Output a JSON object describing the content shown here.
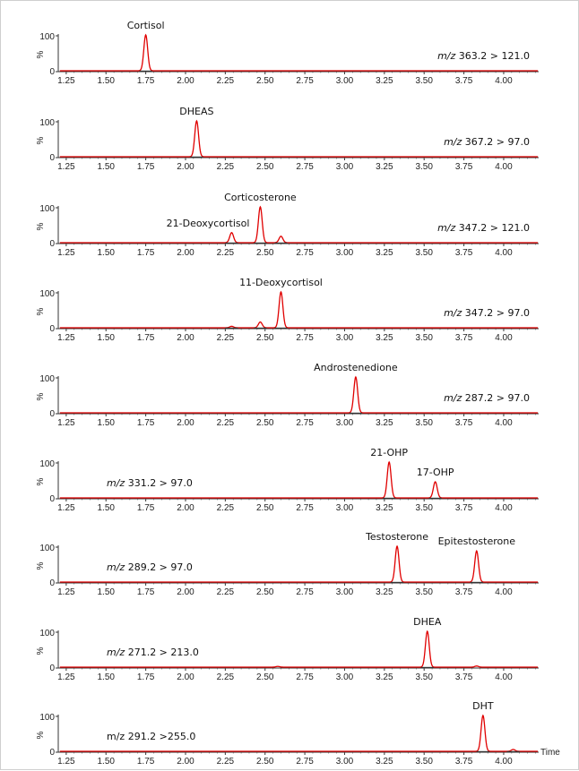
{
  "chart_data": {
    "type": "line",
    "x_axis": {
      "ticks": [
        "1.25",
        "1.50",
        "1.75",
        "2.00",
        "2.25",
        "2.50",
        "2.75",
        "3.00",
        "3.25",
        "3.50",
        "3.75",
        "4.00"
      ],
      "range": [
        1.2,
        4.22
      ],
      "label": "Time"
    },
    "y_axis": {
      "ticks": [
        "0",
        "100"
      ],
      "range": [
        0,
        100
      ],
      "label": "%"
    },
    "line_color": "#e00000",
    "baseline_color": "#333333",
    "panels": [
      {
        "transition_italic": "m/z",
        "transition_rest": " 363.2 > 121.0",
        "transition_position": "right",
        "peaks": [
          {
            "name": "Cortisol",
            "rt": 1.75,
            "height": 100
          }
        ],
        "minor_peaks": []
      },
      {
        "transition_italic": "m/z",
        "transition_rest": " 367.2 > 97.0",
        "transition_position": "right",
        "peaks": [
          {
            "name": "DHEAS",
            "rt": 2.07,
            "height": 100
          }
        ],
        "minor_peaks": []
      },
      {
        "transition_italic": "m/z",
        "transition_rest": " 347.2 > 121.0",
        "transition_position": "right",
        "peaks": [
          {
            "name": "21-Deoxycortisol",
            "rt": 2.29,
            "height": 28
          },
          {
            "name": "Corticosterone",
            "rt": 2.47,
            "height": 100
          }
        ],
        "minor_peaks": [
          {
            "rt": 2.6,
            "height": 18
          }
        ]
      },
      {
        "transition_italic": "m/z",
        "transition_rest": " 347.2 > 97.0",
        "transition_position": "right",
        "peaks": [
          {
            "name": "11-Deoxycortisol",
            "rt": 2.6,
            "height": 100
          }
        ],
        "minor_peaks": [
          {
            "rt": 2.29,
            "height": 4
          },
          {
            "rt": 2.47,
            "height": 16
          }
        ]
      },
      {
        "transition_italic": "m/z",
        "transition_rest": " 287.2 > 97.0",
        "transition_position": "right",
        "peaks": [
          {
            "name": "Androstenedione",
            "rt": 3.07,
            "height": 100
          }
        ],
        "minor_peaks": []
      },
      {
        "transition_italic": "m/z",
        "transition_rest": " 331.2 > 97.0",
        "transition_position": "left",
        "peaks": [
          {
            "name": "21-OHP",
            "rt": 3.28,
            "height": 100
          },
          {
            "name": "17-OHP",
            "rt": 3.57,
            "height": 45
          }
        ],
        "minor_peaks": []
      },
      {
        "transition_italic": "m/z",
        "transition_rest": " 289.2 > 97.0",
        "transition_position": "left",
        "peaks": [
          {
            "name": "Testosterone",
            "rt": 3.33,
            "height": 100
          },
          {
            "name": "Epitestosterone",
            "rt": 3.83,
            "height": 87
          }
        ],
        "minor_peaks": []
      },
      {
        "transition_italic": "m/z",
        "transition_rest": " 271.2 > 213.0",
        "transition_position": "left",
        "peaks": [
          {
            "name": "DHEA",
            "rt": 3.52,
            "height": 100
          }
        ],
        "minor_peaks": [
          {
            "rt": 2.58,
            "height": 2
          },
          {
            "rt": 3.83,
            "height": 3
          }
        ]
      },
      {
        "transition_italic": "",
        "transition_rest": "m/z 291.2 >255.0",
        "transition_position": "left",
        "peaks": [
          {
            "name": "DHT",
            "rt": 3.87,
            "height": 100
          }
        ],
        "minor_peaks": [
          {
            "rt": 4.06,
            "height": 5
          }
        ]
      }
    ]
  }
}
